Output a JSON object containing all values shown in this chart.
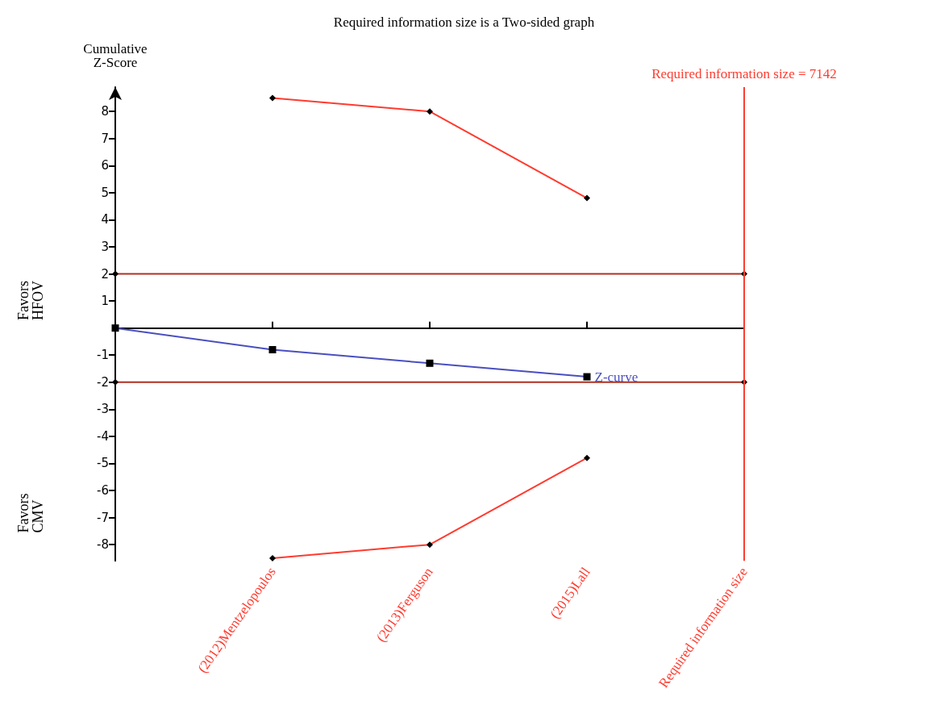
{
  "chart_data": {
    "type": "line",
    "title": "Required information size is a Two-sided graph",
    "ylabel": "Cumulative\nZ-Score",
    "categories": [
      null,
      "(2012)Mentzelopoulos",
      "(2013)Ferguson",
      "(2015)Lall",
      "Required information size"
    ],
    "series": [
      {
        "color": "#ff3b2f",
        "marker": "diamond",
        "values": [
          null,
          8.5,
          8,
          4.8,
          null
        ]
      },
      {
        "color": "#ff3b2f",
        "marker": "diamond",
        "values": [
          null,
          -8.5,
          -8,
          -4.8,
          null
        ]
      },
      {
        "color": "#b03020",
        "marker": "diamond",
        "values": [
          2,
          null,
          null,
          null,
          2
        ]
      },
      {
        "color": "#b03020",
        "marker": "diamond",
        "values": [
          -2,
          null,
          null,
          null,
          -2
        ]
      },
      {
        "name": "Z-curve",
        "color": "#4a4fc0",
        "marker": "square",
        "values": [
          0,
          -0.8,
          -1.3,
          -1.8,
          null
        ]
      }
    ],
    "ref_lines": [
      {
        "axis": "x",
        "value": "Required information size",
        "label": "Required information size = 7142",
        "color": "#ff3b2f"
      }
    ],
    "annotations": [
      "Favors\nHFOV",
      "Favors\nCMV"
    ],
    "ylim": [
      -8.6,
      8.9
    ],
    "yticks": [
      -8,
      -7,
      -6,
      -5,
      -4,
      -3,
      -2,
      -1,
      1,
      2,
      3,
      4,
      5,
      6,
      7,
      8
    ],
    "grid": false,
    "legend": false
  }
}
